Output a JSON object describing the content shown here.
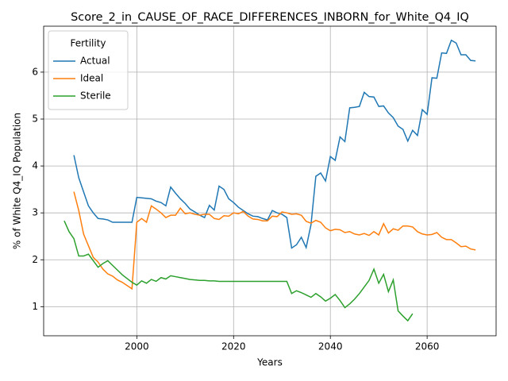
{
  "chart_data": {
    "type": "line",
    "title": "Score_2_in_CAUSE_OF_RACE_DIFFERENCES_INBORN_for_White_Q4_IQ",
    "x_label": "Years",
    "y_label": "% of White Q4_IQ Population",
    "legend_title": "Fertility",
    "legend": "upper left",
    "grid": true,
    "x": [
      1985,
      1986,
      1987,
      1988,
      1989,
      1990,
      1991,
      1992,
      1993,
      1994,
      1995,
      1996,
      1997,
      1998,
      1999,
      2000,
      2001,
      2002,
      2003,
      2004,
      2005,
      2006,
      2007,
      2008,
      2009,
      2010,
      2011,
      2012,
      2013,
      2014,
      2015,
      2016,
      2017,
      2018,
      2019,
      2020,
      2021,
      2022,
      2023,
      2024,
      2025,
      2026,
      2027,
      2028,
      2029,
      2030,
      2031,
      2032,
      2033,
      2034,
      2035,
      2036,
      2037,
      2038,
      2039,
      2040,
      2041,
      2042,
      2043,
      2044,
      2045,
      2046,
      2047,
      2048,
      2049,
      2050,
      2051,
      2052,
      2053,
      2054,
      2055,
      2056,
      2057,
      2058,
      2059,
      2060,
      2061,
      2062,
      2063,
      2064,
      2065,
      2066,
      2067,
      2068,
      2069,
      2070
    ],
    "xlim": [
      1980.75,
      2074.25
    ],
    "xticks": [
      2000,
      2020,
      2040,
      2060
    ],
    "ylim": [
      0.38,
      6.98
    ],
    "yticks": [
      1,
      2,
      3,
      4,
      5,
      6
    ],
    "series": [
      {
        "name": "Actual",
        "color": "#1f77b4",
        "values": [
          null,
          null,
          4.23,
          3.75,
          3.45,
          3.15,
          3.0,
          2.88,
          2.87,
          2.85,
          2.8,
          2.8,
          2.8,
          2.8,
          2.8,
          3.33,
          3.32,
          3.31,
          3.3,
          3.25,
          3.22,
          3.15,
          3.55,
          3.42,
          3.3,
          3.2,
          3.08,
          3.02,
          2.95,
          2.9,
          3.16,
          3.06,
          3.57,
          3.5,
          3.3,
          3.22,
          3.12,
          3.05,
          2.98,
          2.93,
          2.92,
          2.88,
          2.85,
          3.05,
          3.0,
          2.97,
          2.9,
          2.25,
          2.32,
          2.48,
          2.26,
          2.75,
          3.78,
          3.85,
          3.68,
          4.2,
          4.12,
          4.62,
          4.52,
          5.24,
          5.25,
          5.27,
          5.57,
          5.48,
          5.47,
          5.27,
          5.28,
          5.13,
          5.03,
          4.85,
          4.78,
          4.53,
          4.76,
          4.65,
          5.2,
          5.1,
          5.88,
          5.87,
          6.41,
          6.4,
          6.68,
          6.62,
          6.37,
          6.37,
          6.25,
          6.24
        ]
      },
      {
        "name": "Ideal",
        "color": "#ff7f0e",
        "values": [
          null,
          null,
          3.45,
          3.05,
          2.55,
          2.3,
          2.05,
          1.95,
          1.8,
          1.7,
          1.65,
          1.57,
          1.52,
          1.45,
          1.38,
          2.8,
          2.88,
          2.8,
          3.15,
          3.08,
          3.0,
          2.9,
          2.95,
          2.95,
          3.1,
          2.98,
          3.0,
          2.97,
          2.95,
          2.97,
          2.97,
          2.88,
          2.86,
          2.94,
          2.93,
          3.0,
          2.98,
          3.03,
          2.93,
          2.87,
          2.86,
          2.83,
          2.83,
          2.93,
          2.92,
          3.02,
          3.0,
          2.97,
          2.98,
          2.95,
          2.82,
          2.78,
          2.84,
          2.8,
          2.68,
          2.62,
          2.65,
          2.64,
          2.58,
          2.6,
          2.55,
          2.53,
          2.56,
          2.52,
          2.6,
          2.53,
          2.77,
          2.57,
          2.66,
          2.63,
          2.72,
          2.72,
          2.7,
          2.6,
          2.55,
          2.53,
          2.54,
          2.58,
          2.48,
          2.43,
          2.43,
          2.36,
          2.28,
          2.29,
          2.23,
          2.21
        ]
      },
      {
        "name": "Sterile",
        "color": "#2ca02c",
        "values": [
          2.83,
          2.6,
          2.45,
          2.08,
          2.08,
          2.12,
          1.98,
          1.84,
          1.92,
          1.98,
          1.88,
          1.78,
          1.68,
          1.6,
          1.52,
          1.46,
          1.55,
          1.5,
          1.58,
          1.54,
          1.62,
          1.59,
          1.66,
          1.64,
          1.62,
          1.6,
          1.58,
          1.57,
          1.56,
          1.56,
          1.55,
          1.55,
          1.54,
          1.54,
          1.54,
          1.54,
          1.54,
          1.54,
          1.54,
          1.54,
          1.54,
          1.54,
          1.54,
          1.54,
          1.54,
          1.54,
          1.54,
          1.28,
          1.34,
          1.3,
          1.25,
          1.2,
          1.28,
          1.21,
          1.12,
          1.18,
          1.26,
          1.13,
          0.98,
          1.06,
          1.16,
          1.28,
          1.42,
          1.56,
          1.8,
          1.5,
          1.69,
          1.32,
          1.57,
          0.91,
          0.8,
          0.7,
          0.85,
          null,
          null,
          null,
          null,
          null,
          null,
          null,
          null,
          null,
          null,
          null,
          null,
          null
        ]
      }
    ]
  }
}
